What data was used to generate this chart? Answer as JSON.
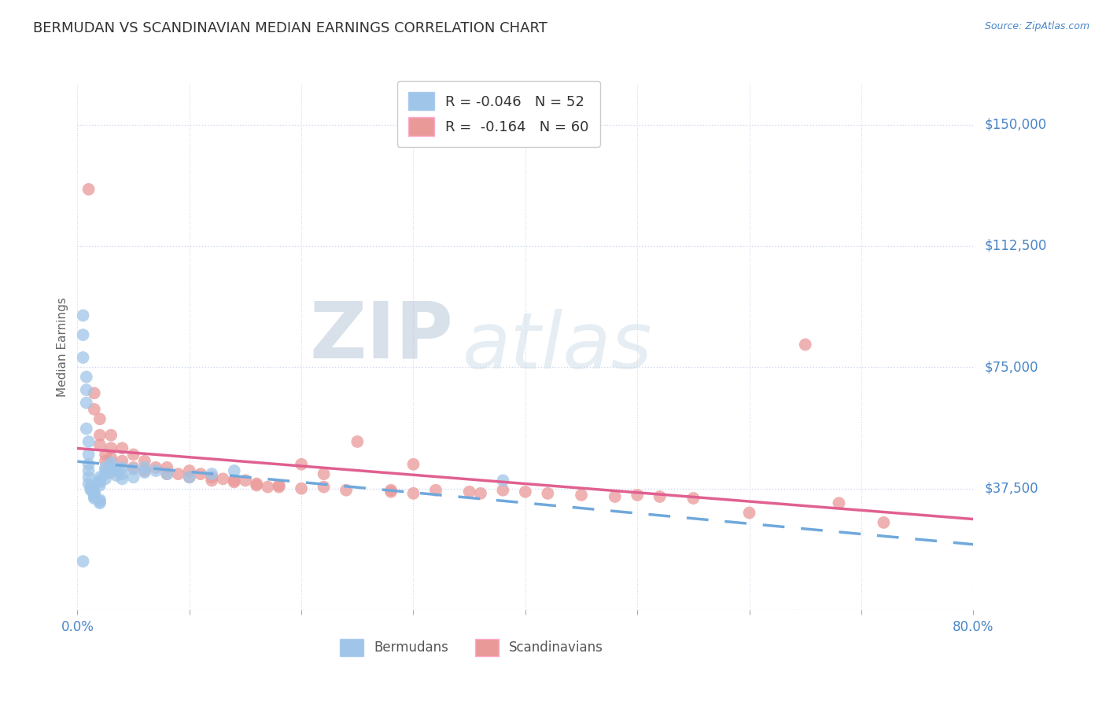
{
  "title": "BERMUDAN VS SCANDINAVIAN MEDIAN EARNINGS CORRELATION CHART",
  "source": "Source: ZipAtlas.com",
  "ylabel": "Median Earnings",
  "xlim": [
    0.0,
    0.8
  ],
  "ylim": [
    0,
    162500
  ],
  "yticks": [
    0,
    37500,
    75000,
    112500,
    150000
  ],
  "ytick_labels": [
    "",
    "$37,500",
    "$75,000",
    "$112,500",
    "$150,000"
  ],
  "xticks": [
    0.0,
    0.1,
    0.2,
    0.3,
    0.4,
    0.5,
    0.6,
    0.7,
    0.8
  ],
  "xtick_labels_show": [
    "0.0%",
    "",
    "",
    "",
    "",
    "",
    "",
    "",
    "80.0%"
  ],
  "bermudans_color": "#9fc5e8",
  "scandinavians_color": "#ea9999",
  "trend_bermudan_color": "#6fa8dc",
  "trend_scandinavian_color": "#e06090",
  "R_bermudan": -0.046,
  "N_bermudan": 52,
  "R_scandinavian": -0.164,
  "N_scandinavian": 60,
  "legend_label_1": "Bermudans",
  "legend_label_2": "Scandinavians",
  "watermark_zip": "ZIP",
  "watermark_atlas": "atlas",
  "background_color": "#ffffff",
  "axis_color": "#4a86c8",
  "title_color": "#333333",
  "grid_color": "#d0d8f0",
  "bermudans_x": [
    0.005,
    0.005,
    0.005,
    0.008,
    0.008,
    0.008,
    0.008,
    0.01,
    0.01,
    0.01,
    0.01,
    0.01,
    0.01,
    0.012,
    0.012,
    0.012,
    0.015,
    0.015,
    0.015,
    0.015,
    0.015,
    0.02,
    0.02,
    0.02,
    0.02,
    0.02,
    0.02,
    0.02,
    0.025,
    0.025,
    0.025,
    0.025,
    0.03,
    0.03,
    0.03,
    0.03,
    0.035,
    0.035,
    0.04,
    0.04,
    0.04,
    0.05,
    0.05,
    0.06,
    0.06,
    0.07,
    0.08,
    0.1,
    0.12,
    0.14,
    0.005,
    0.38
  ],
  "bermudans_y": [
    91000,
    85000,
    78000,
    72000,
    68000,
    64000,
    56000,
    52000,
    48000,
    45000,
    43000,
    41000,
    39000,
    38000,
    37500,
    37000,
    36500,
    36000,
    35500,
    35000,
    34500,
    34000,
    33500,
    33000,
    38500,
    39500,
    40000,
    41000,
    40500,
    42000,
    43000,
    44000,
    43500,
    44500,
    45500,
    42500,
    43000,
    41500,
    42000,
    40500,
    44000,
    43500,
    41000,
    42500,
    44000,
    43000,
    42000,
    41000,
    42000,
    43000,
    15000,
    40000
  ],
  "scandinavians_x": [
    0.01,
    0.015,
    0.015,
    0.02,
    0.02,
    0.02,
    0.025,
    0.025,
    0.03,
    0.03,
    0.03,
    0.04,
    0.04,
    0.05,
    0.05,
    0.06,
    0.06,
    0.07,
    0.08,
    0.08,
    0.09,
    0.1,
    0.1,
    0.11,
    0.12,
    0.12,
    0.13,
    0.14,
    0.14,
    0.15,
    0.16,
    0.16,
    0.17,
    0.18,
    0.18,
    0.2,
    0.2,
    0.22,
    0.22,
    0.24,
    0.25,
    0.28,
    0.28,
    0.3,
    0.3,
    0.32,
    0.35,
    0.36,
    0.38,
    0.4,
    0.42,
    0.45,
    0.48,
    0.5,
    0.52,
    0.55,
    0.6,
    0.65,
    0.68,
    0.72
  ],
  "scandinavians_y": [
    130000,
    67000,
    62000,
    59000,
    54000,
    51000,
    48000,
    46000,
    54000,
    50000,
    47000,
    50000,
    46000,
    48000,
    44000,
    46000,
    43000,
    44000,
    44000,
    42000,
    42000,
    43000,
    41000,
    42000,
    41000,
    40000,
    40500,
    40000,
    39500,
    40000,
    39000,
    38500,
    38000,
    38500,
    38000,
    37500,
    45000,
    42000,
    38000,
    37000,
    52000,
    37000,
    36500,
    45000,
    36000,
    37000,
    36500,
    36000,
    37000,
    36500,
    36000,
    35500,
    35000,
    35500,
    35000,
    34500,
    30000,
    82000,
    33000,
    27000
  ]
}
